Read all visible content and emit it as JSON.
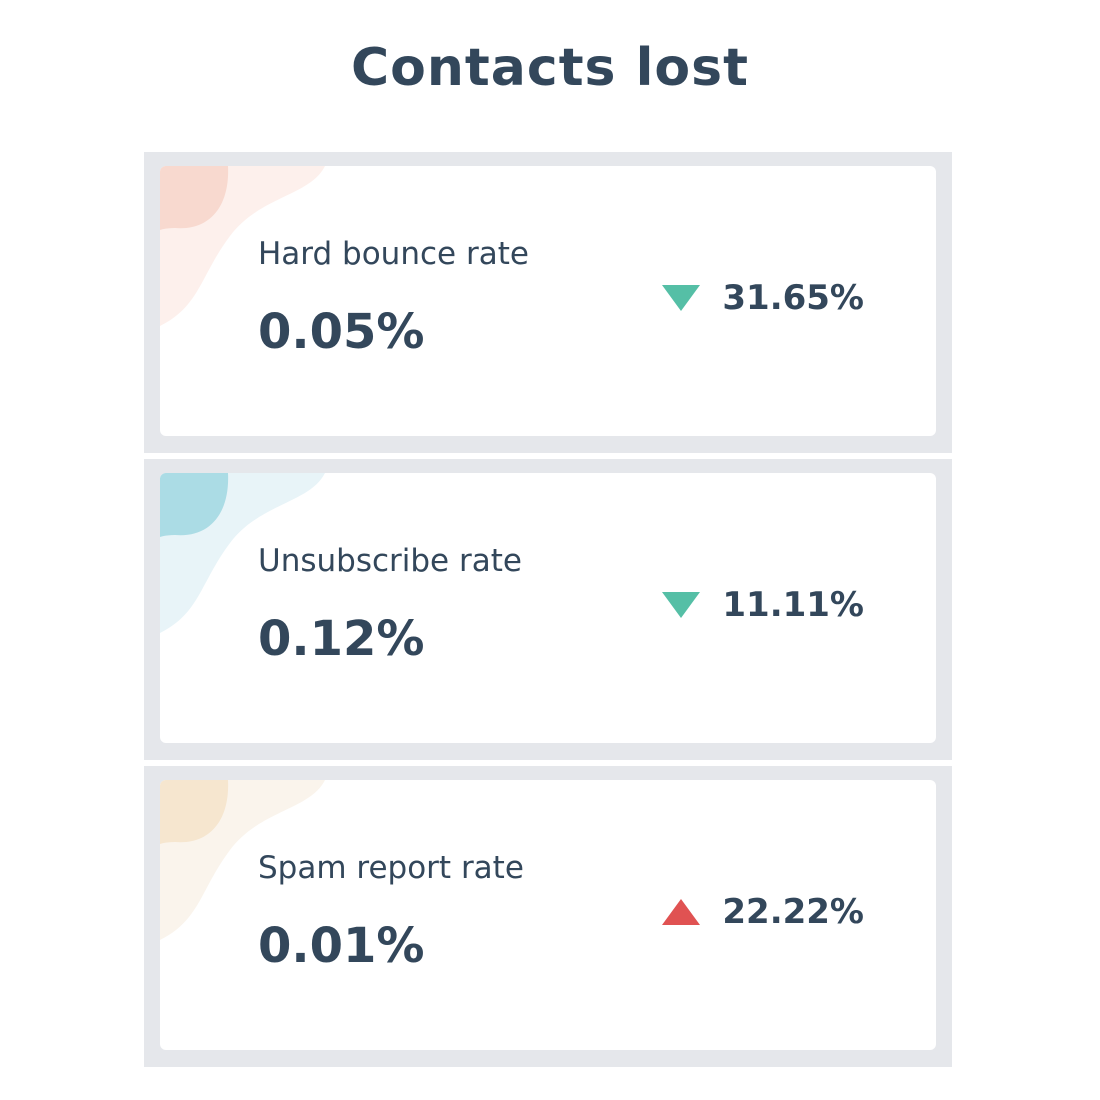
{
  "title": "Contacts lost",
  "metrics": [
    {
      "label": "Hard bounce rate",
      "value": "0.05%",
      "change": "31.65%",
      "direction": "down",
      "trend_color": "#55bfa6",
      "accent_dark": "#f8d9cf",
      "accent_light": "#fdf0ec"
    },
    {
      "label": "Unsubscribe rate",
      "value": "0.12%",
      "change": "11.11%",
      "direction": "down",
      "trend_color": "#55bfa6",
      "accent_dark": "#abdce5",
      "accent_light": "#e8f4f8"
    },
    {
      "label": "Spam report rate",
      "value": "0.01%",
      "change": "22.22%",
      "direction": "up",
      "trend_color": "#e05252",
      "accent_dark": "#f6e6cf",
      "accent_light": "#faf4ec"
    }
  ]
}
